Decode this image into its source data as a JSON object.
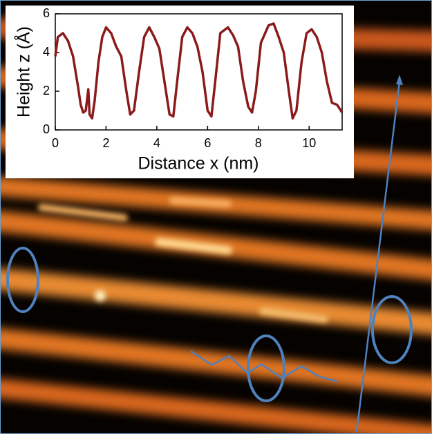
{
  "chart_data": {
    "type": "line",
    "xlabel": "Distance x (nm)",
    "ylabel": "Height z (Å)",
    "x": [
      0,
      0.1,
      0.3,
      0.5,
      0.7,
      0.9,
      1.0,
      1.1,
      1.2,
      1.3,
      1.35,
      1.45,
      1.55,
      1.7,
      1.85,
      2.0,
      2.2,
      2.4,
      2.6,
      2.8,
      2.95,
      3.1,
      3.3,
      3.5,
      3.7,
      3.9,
      4.1,
      4.3,
      4.5,
      4.65,
      4.8,
      5.0,
      5.2,
      5.4,
      5.6,
      5.8,
      6.0,
      6.15,
      6.3,
      6.5,
      6.8,
      7.0,
      7.2,
      7.4,
      7.6,
      7.75,
      7.9,
      8.1,
      8.4,
      8.6,
      8.8,
      9.0,
      9.2,
      9.35,
      9.5,
      9.7,
      9.9,
      10.1,
      10.3,
      10.5,
      10.7,
      10.9,
      11.1,
      11.3
    ],
    "values": [
      3.8,
      4.8,
      5.0,
      4.6,
      3.8,
      2.2,
      1.3,
      0.9,
      1.0,
      2.1,
      0.8,
      0.6,
      1.5,
      3.5,
      4.8,
      5.3,
      5.0,
      4.3,
      3.8,
      2.0,
      0.8,
      1.0,
      3.0,
      4.8,
      5.3,
      4.8,
      4.2,
      2.5,
      0.8,
      0.7,
      2.5,
      4.8,
      5.3,
      5.0,
      4.3,
      3.0,
      1.0,
      0.7,
      2.5,
      5.0,
      5.3,
      4.9,
      4.3,
      2.5,
      1.2,
      0.9,
      2.0,
      4.5,
      5.4,
      5.5,
      4.8,
      4.0,
      2.0,
      0.6,
      1.0,
      3.5,
      5.0,
      5.2,
      4.8,
      4.0,
      2.5,
      1.4,
      1.3,
      0.9
    ],
    "color": "#8b1a1a",
    "xlim": [
      0,
      11.3
    ],
    "xticks": [
      0,
      2,
      4,
      6,
      8,
      10
    ],
    "ylim": [
      0,
      6
    ],
    "yticks": [
      0,
      2,
      4,
      6
    ]
  }
}
